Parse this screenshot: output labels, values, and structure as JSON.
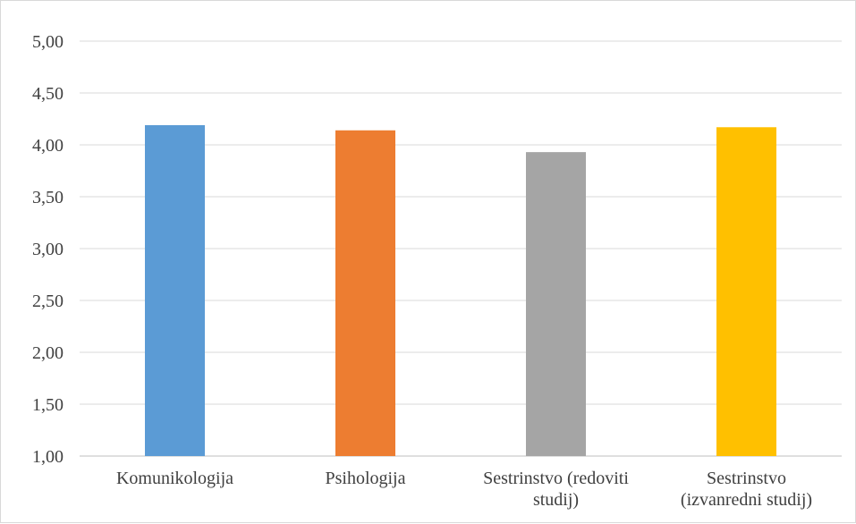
{
  "chart_data": {
    "type": "bar",
    "title": "",
    "xlabel": "",
    "ylabel": "",
    "ylim": [
      1.0,
      5.0
    ],
    "yticks": [
      "1,00",
      "1,50",
      "2,00",
      "2,50",
      "3,00",
      "3,50",
      "4,00",
      "4,50",
      "5,00"
    ],
    "ytick_values": [
      1.0,
      1.5,
      2.0,
      2.5,
      3.0,
      3.5,
      4.0,
      4.5,
      5.0
    ],
    "grid": true,
    "legend": "none",
    "categories": [
      [
        "Komunikologija"
      ],
      [
        "Psihologija"
      ],
      [
        "Sestrinstvo (redoviti",
        "studij)"
      ],
      [
        "Sestrinstvo",
        "(izvanredni studij)"
      ]
    ],
    "values": [
      4.19,
      4.14,
      3.93,
      4.17
    ],
    "colors": [
      "#5b9bd5",
      "#ed7d31",
      "#a5a5a5",
      "#ffc000"
    ]
  }
}
